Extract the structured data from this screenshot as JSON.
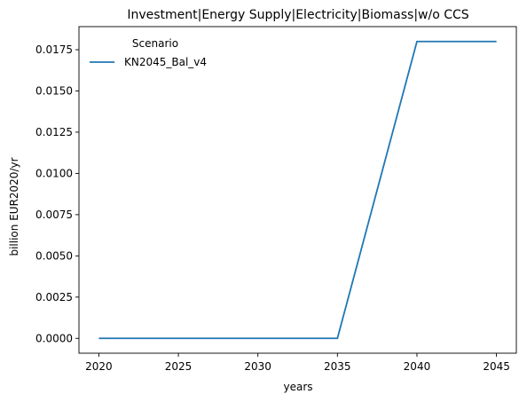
{
  "chart_data": {
    "type": "line",
    "title": "Investment|Energy Supply|Electricity|Biomass|w/o CCS",
    "xlabel": "years",
    "ylabel": "billion EUR2020/yr",
    "xlim": [
      2018.75,
      2046.25
    ],
    "ylim": [
      -0.0009,
      0.0189
    ],
    "xticks": [
      2020,
      2025,
      2030,
      2035,
      2040,
      2045
    ],
    "yticks": [
      0.0,
      0.0025,
      0.005,
      0.0075,
      0.01,
      0.0125,
      0.015,
      0.0175
    ],
    "ytick_labels": [
      "0.0000",
      "0.0025",
      "0.0050",
      "0.0075",
      "0.0100",
      "0.0125",
      "0.0150",
      "0.0175"
    ],
    "grid": false,
    "legend": {
      "title": "Scenario",
      "placement": "top-left"
    },
    "series": [
      {
        "name": "KN2045_Bal_v4",
        "color": "#1f77b4",
        "x": [
          2020,
          2025,
          2030,
          2035,
          2040,
          2045
        ],
        "y": [
          0.0,
          0.0,
          0.0,
          0.0,
          0.018,
          0.018
        ]
      }
    ]
  }
}
